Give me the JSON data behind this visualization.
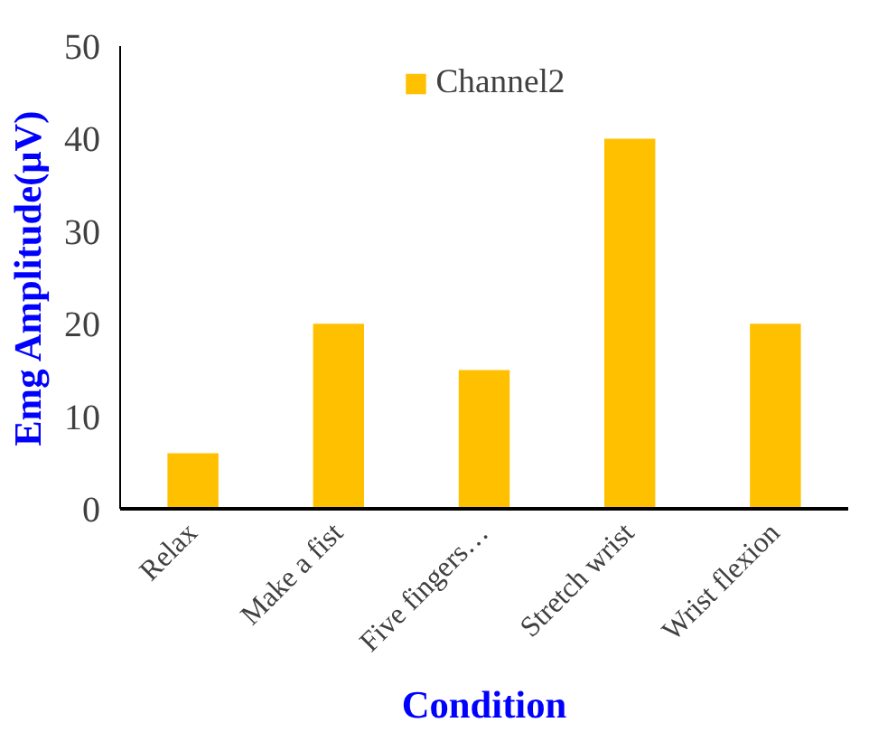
{
  "chart_data": {
    "type": "bar",
    "xlabel": "Condition",
    "ylabel": "Emg Amplitude(μV)",
    "categories": [
      "Relax",
      "Make a fist",
      "Five fingers…",
      "Stretch wrist",
      "Wrist flexion"
    ],
    "series": [
      {
        "name": "Channel2",
        "color": "#ffc000",
        "values": [
          6,
          20,
          15,
          40,
          20
        ]
      }
    ],
    "ylim": [
      0,
      50
    ],
    "yticks": [
      0,
      10,
      20,
      30,
      40,
      50
    ],
    "grid": false,
    "legend": "top"
  }
}
